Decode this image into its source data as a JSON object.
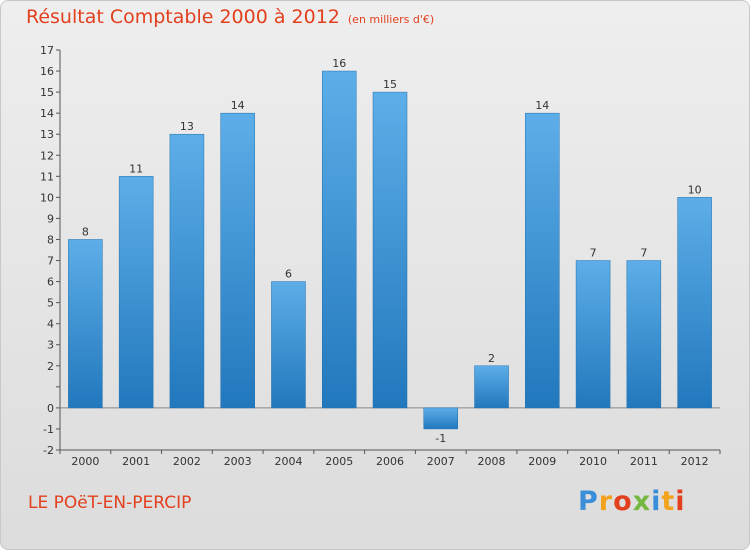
{
  "title": "Résultat Comptable 2000 à 2012",
  "subtitle": "(en milliers d'€)",
  "commune": "LE POëT-EN-PERCIP",
  "logo": [
    "P",
    "r",
    "o",
    "x",
    "i",
    "t",
    "i"
  ],
  "colors": {
    "bar_top": "#5daee8",
    "bar_bottom": "#2278bd",
    "title": "#e2401e"
  },
  "chart_data": {
    "type": "bar",
    "title": "Résultat Comptable 2000 à 2012",
    "ylabel": "(en milliers d'€)",
    "categories": [
      "2000",
      "2001",
      "2002",
      "2003",
      "2004",
      "2005",
      "2006",
      "2007",
      "2008",
      "2009",
      "2010",
      "2011",
      "2012"
    ],
    "values": [
      8,
      11,
      13,
      14,
      6,
      16,
      15,
      -1,
      2,
      14,
      7,
      7,
      10
    ],
    "yticks": [
      -2,
      -1,
      0,
      1,
      2,
      3,
      4,
      5,
      6,
      7,
      8,
      9,
      10,
      11,
      12,
      13,
      14,
      15,
      16,
      17
    ],
    "ytick_labels": [
      "-2",
      "-1",
      "0",
      "",
      "2",
      "3",
      "4",
      "5",
      "6",
      "7",
      "8",
      "9",
      "10",
      "11",
      "12",
      "13",
      "14",
      "15",
      "16",
      "17"
    ],
    "ylim": [
      -2,
      17
    ],
    "grid": false
  }
}
